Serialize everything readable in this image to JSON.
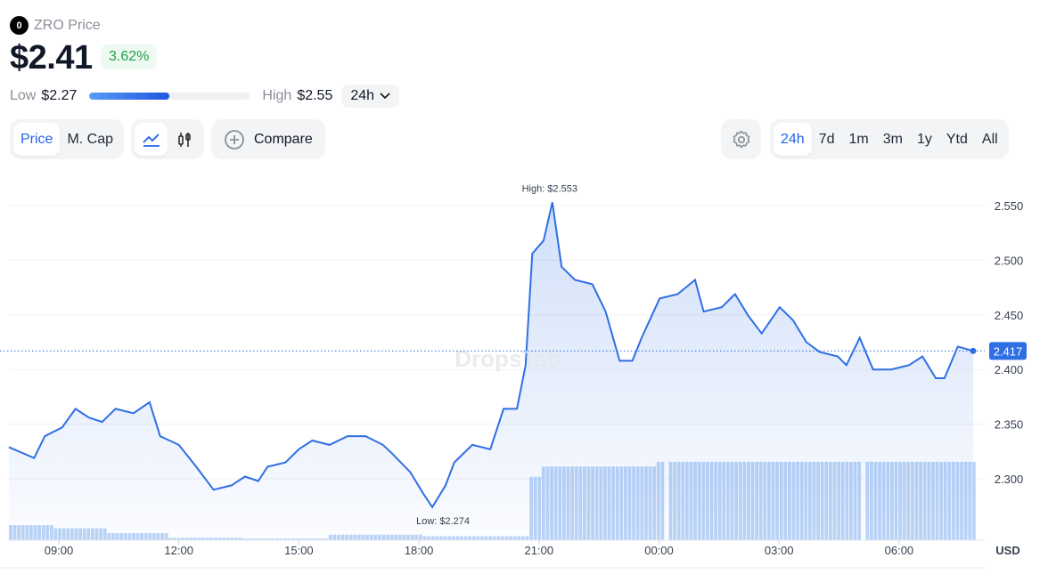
{
  "coin": {
    "symbol_logo": "0",
    "title": "ZRO Price",
    "price": "$2.41",
    "change": "3.62%",
    "change_color": "#22a04b"
  },
  "range": {
    "low_label": "Low",
    "low": "$2.27",
    "high_label": "High",
    "high": "$2.55",
    "period": "24h",
    "position_fraction": 0.5
  },
  "toolbar": {
    "metric_tabs": [
      "Price",
      "M. Cap"
    ],
    "active_metric": "Price",
    "chart_types": [
      "line-chart-icon",
      "candlestick-icon"
    ],
    "compare": "Compare",
    "periods": [
      "24h",
      "7d",
      "1m",
      "3m",
      "1y",
      "Ytd",
      "All"
    ],
    "active_period": "24h"
  },
  "chart_data": {
    "type": "area",
    "currency": "USD",
    "accent": "#2f6fe4",
    "y_ticks": [
      "2.300",
      "2.350",
      "2.400",
      "2.450",
      "2.500",
      "2.550"
    ],
    "ylim": [
      2.25,
      2.575
    ],
    "x_ticks": [
      "09:00",
      "12:00",
      "15:00",
      "18:00",
      "21:00",
      "00:00",
      "03:00",
      "06:00"
    ],
    "high_label": "High: $2.553",
    "low_label": "Low: $2.274",
    "current": "2.417",
    "watermark": "DropsTab",
    "points": [
      [
        "07:45",
        2.329
      ],
      [
        "08:23",
        2.319
      ],
      [
        "08:39",
        2.339
      ],
      [
        "09:05",
        2.347
      ],
      [
        "09:25",
        2.364
      ],
      [
        "09:45",
        2.356
      ],
      [
        "10:05",
        2.352
      ],
      [
        "10:25",
        2.364
      ],
      [
        "10:52",
        2.36
      ],
      [
        "11:16",
        2.37
      ],
      [
        "11:32",
        2.339
      ],
      [
        "12:00",
        2.331
      ],
      [
        "12:26",
        2.311
      ],
      [
        "12:52",
        2.29
      ],
      [
        "13:19",
        2.294
      ],
      [
        "13:39",
        2.302
      ],
      [
        "13:59",
        2.298
      ],
      [
        "14:13",
        2.311
      ],
      [
        "14:40",
        2.315
      ],
      [
        "15:00",
        2.327
      ],
      [
        "15:20",
        2.335
      ],
      [
        "15:46",
        2.331
      ],
      [
        "16:13",
        2.339
      ],
      [
        "16:40",
        2.339
      ],
      [
        "17:06",
        2.331
      ],
      [
        "17:20",
        2.323
      ],
      [
        "17:47",
        2.306
      ],
      [
        "18:07",
        2.286
      ],
      [
        "18:20",
        2.274
      ],
      [
        "18:40",
        2.294
      ],
      [
        "18:53",
        2.315
      ],
      [
        "19:20",
        2.331
      ],
      [
        "19:47",
        2.327
      ],
      [
        "20:07",
        2.364
      ],
      [
        "20:27",
        2.364
      ],
      [
        "20:40",
        2.404
      ],
      [
        "20:50",
        2.506
      ],
      [
        "21:07",
        2.518
      ],
      [
        "21:20",
        2.553
      ],
      [
        "21:34",
        2.494
      ],
      [
        "21:54",
        2.482
      ],
      [
        "22:20",
        2.478
      ],
      [
        "22:40",
        2.453
      ],
      [
        "23:01",
        2.408
      ],
      [
        "23:20",
        2.408
      ],
      [
        "23:34",
        2.429
      ],
      [
        "00:01",
        2.465
      ],
      [
        "00:28",
        2.469
      ],
      [
        "00:54",
        2.482
      ],
      [
        "01:07",
        2.453
      ],
      [
        "01:34",
        2.457
      ],
      [
        "01:54",
        2.469
      ],
      [
        "02:14",
        2.449
      ],
      [
        "02:34",
        2.433
      ],
      [
        "03:01",
        2.457
      ],
      [
        "03:21",
        2.445
      ],
      [
        "03:41",
        2.425
      ],
      [
        "04:01",
        2.416
      ],
      [
        "04:28",
        2.412
      ],
      [
        "04:41",
        2.404
      ],
      [
        "05:01",
        2.429
      ],
      [
        "05:21",
        2.4
      ],
      [
        "05:48",
        2.4
      ],
      [
        "06:15",
        2.404
      ],
      [
        "06:35",
        2.412
      ],
      [
        "06:55",
        2.392
      ],
      [
        "07:08",
        2.392
      ],
      [
        "07:28",
        2.421
      ],
      [
        "07:51",
        2.417
      ]
    ],
    "volume_relative": [
      [
        "07:45",
        0.19
      ],
      [
        "08:50",
        0.15
      ],
      [
        "10:10",
        0.09
      ],
      [
        "11:40",
        0.03
      ],
      [
        "13:30",
        0.02
      ],
      [
        "15:40",
        0.07
      ],
      [
        "18:00",
        0.05
      ],
      [
        "20:40",
        0.8
      ],
      [
        "21:00",
        0.93
      ],
      [
        "23:55",
        0.99
      ]
    ]
  }
}
